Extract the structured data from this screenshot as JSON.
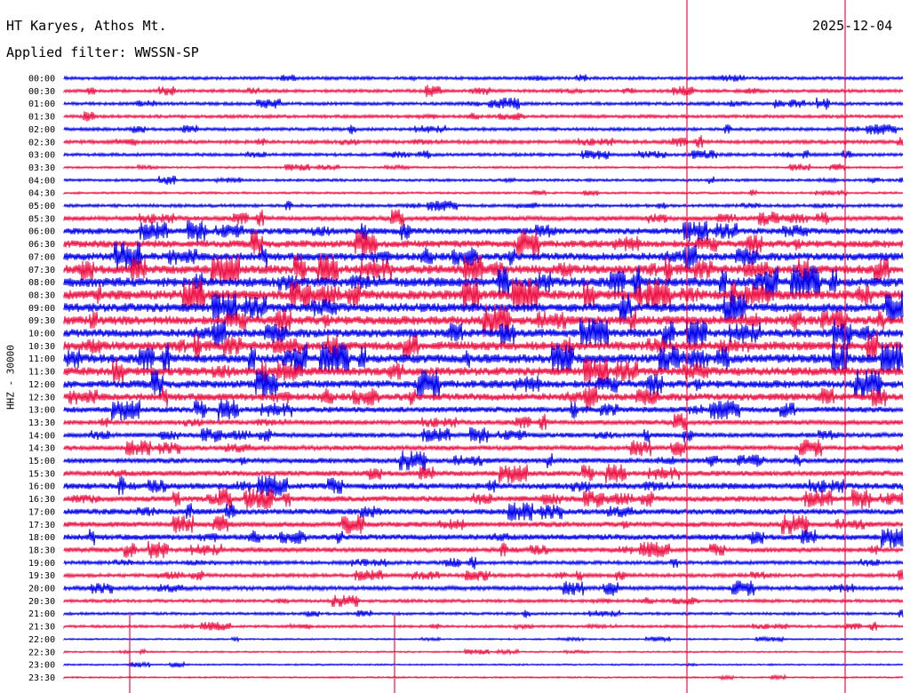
{
  "header": {
    "station": "HT Karyes, Athos Mt.",
    "date": "2025-12-04",
    "filter": "Applied filter: WWSSN-SP",
    "channel_label": "HHZ - 30000"
  },
  "colors": {
    "trace_a": "#0000ee",
    "trace_b": "#ee1144",
    "marker": "#ee1144"
  },
  "rows": [
    {
      "time": "00:00",
      "amp": 0.3
    },
    {
      "time": "00:30",
      "amp": 0.3
    },
    {
      "time": "01:00",
      "amp": 0.3
    },
    {
      "time": "01:30",
      "amp": 0.3
    },
    {
      "time": "02:00",
      "amp": 0.3
    },
    {
      "time": "02:30",
      "amp": 0.35
    },
    {
      "time": "03:00",
      "amp": 0.3
    },
    {
      "time": "03:30",
      "amp": 0.2
    },
    {
      "time": "04:00",
      "amp": 0.25
    },
    {
      "time": "04:30",
      "amp": 0.2
    },
    {
      "time": "05:00",
      "amp": 0.3
    },
    {
      "time": "05:30",
      "amp": 0.45
    },
    {
      "time": "06:00",
      "amp": 0.6
    },
    {
      "time": "06:30",
      "amp": 0.7
    },
    {
      "time": "07:00",
      "amp": 0.75
    },
    {
      "time": "07:30",
      "amp": 0.85
    },
    {
      "time": "08:00",
      "amp": 0.9
    },
    {
      "time": "08:30",
      "amp": 0.9
    },
    {
      "time": "09:00",
      "amp": 0.85
    },
    {
      "time": "09:30",
      "amp": 0.85
    },
    {
      "time": "10:00",
      "amp": 0.8
    },
    {
      "time": "10:30",
      "amp": 0.85
    },
    {
      "time": "11:00",
      "amp": 0.85
    },
    {
      "time": "11:30",
      "amp": 0.8
    },
    {
      "time": "12:00",
      "amp": 0.75
    },
    {
      "time": "12:30",
      "amp": 0.7
    },
    {
      "time": "13:00",
      "amp": 0.55
    },
    {
      "time": "13:30",
      "amp": 0.45
    },
    {
      "time": "14:00",
      "amp": 0.45
    },
    {
      "time": "14:30",
      "amp": 0.45
    },
    {
      "time": "15:00",
      "amp": 0.5
    },
    {
      "time": "15:30",
      "amp": 0.5
    },
    {
      "time": "16:00",
      "amp": 0.6
    },
    {
      "time": "16:30",
      "amp": 0.55
    },
    {
      "time": "17:00",
      "amp": 0.55
    },
    {
      "time": "17:30",
      "amp": 0.5
    },
    {
      "time": "18:00",
      "amp": 0.55
    },
    {
      "time": "18:30",
      "amp": 0.45
    },
    {
      "time": "19:00",
      "amp": 0.35
    },
    {
      "time": "19:30",
      "amp": 0.35
    },
    {
      "time": "20:00",
      "amp": 0.4
    },
    {
      "time": "20:30",
      "amp": 0.3
    },
    {
      "time": "21:00",
      "amp": 0.25
    },
    {
      "time": "21:30",
      "amp": 0.25
    },
    {
      "time": "22:00",
      "amp": 0.15
    },
    {
      "time": "22:30",
      "amp": 0.15
    },
    {
      "time": "23:00",
      "amp": 0.15
    },
    {
      "time": "23:30",
      "amp": 0.15
    }
  ]
}
